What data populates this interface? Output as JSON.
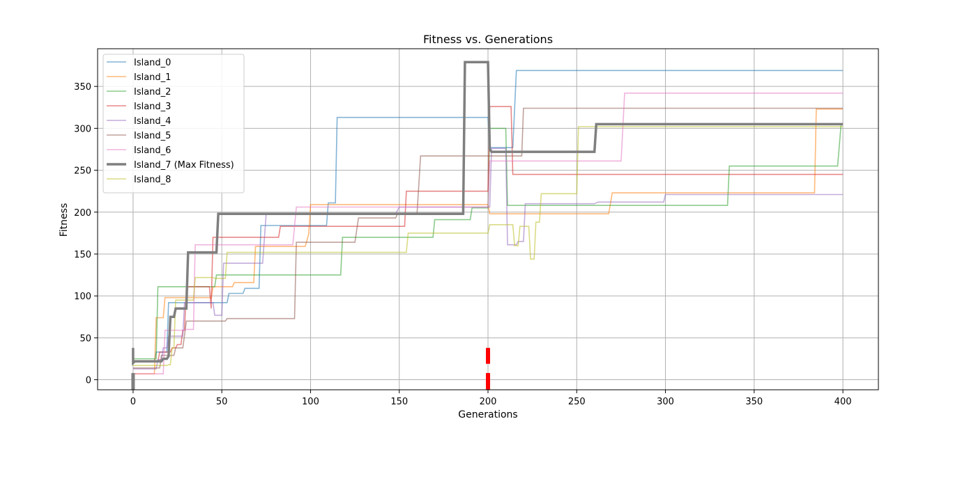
{
  "chart_data": {
    "type": "line",
    "title": "Fitness vs. Generations",
    "xlabel": "Generations",
    "ylabel": "Fitness",
    "xlim": [
      -20,
      420
    ],
    "ylim": [
      -12,
      395
    ],
    "xticks": [
      0,
      50,
      100,
      150,
      200,
      250,
      300,
      350,
      400
    ],
    "yticks": [
      0,
      50,
      100,
      150,
      200,
      250,
      300,
      350
    ],
    "grid": true,
    "legend_position": "upper-left",
    "series": [
      {
        "name": "Island_0",
        "color": "#1f77b4",
        "alpha": 0.55,
        "width": 1.6,
        "points": [
          [
            0,
            22
          ],
          [
            12,
            22
          ],
          [
            13,
            33
          ],
          [
            19,
            33
          ],
          [
            20,
            92
          ],
          [
            47,
            92
          ],
          [
            48,
            92
          ],
          [
            53,
            92
          ],
          [
            54,
            103
          ],
          [
            62,
            103
          ],
          [
            63,
            109
          ],
          [
            71,
            109
          ],
          [
            72,
            184
          ],
          [
            109,
            184
          ],
          [
            110,
            211
          ],
          [
            114,
            211
          ],
          [
            115,
            313
          ],
          [
            200,
            313
          ],
          [
            201,
            277
          ],
          [
            214,
            277
          ],
          [
            216,
            369
          ],
          [
            400,
            369
          ]
        ]
      },
      {
        "name": "Island_1",
        "color": "#ff7f0e",
        "alpha": 0.55,
        "width": 1.6,
        "points": [
          [
            0,
            7
          ],
          [
            12,
            7
          ],
          [
            13,
            74
          ],
          [
            17,
            74
          ],
          [
            18,
            98
          ],
          [
            34,
            98
          ],
          [
            35,
            98
          ],
          [
            44,
            98
          ],
          [
            45,
            111
          ],
          [
            56,
            111
          ],
          [
            57,
            116
          ],
          [
            68,
            116
          ],
          [
            69,
            159
          ],
          [
            97,
            159
          ],
          [
            99,
            174
          ],
          [
            100,
            209
          ],
          [
            200,
            209
          ],
          [
            201,
            198
          ],
          [
            268,
            198
          ],
          [
            270,
            223
          ],
          [
            384,
            223
          ],
          [
            385,
            323
          ],
          [
            400,
            323
          ]
        ]
      },
      {
        "name": "Island_2",
        "color": "#2ca02c",
        "alpha": 0.55,
        "width": 1.6,
        "points": [
          [
            0,
            25
          ],
          [
            13,
            25
          ],
          [
            14,
            111
          ],
          [
            28,
            111
          ],
          [
            29,
            111
          ],
          [
            46,
            111
          ],
          [
            47,
            125
          ],
          [
            117,
            125
          ],
          [
            118,
            170
          ],
          [
            169,
            170
          ],
          [
            170,
            191
          ],
          [
            190,
            191
          ],
          [
            191,
            205
          ],
          [
            200,
            205
          ],
          [
            201,
            300
          ],
          [
            210,
            300
          ],
          [
            211,
            208
          ],
          [
            335,
            208
          ],
          [
            336,
            255
          ],
          [
            397,
            255
          ],
          [
            399,
            305
          ],
          [
            400,
            305
          ]
        ]
      },
      {
        "name": "Island_3",
        "color": "#d62728",
        "alpha": 0.55,
        "width": 1.6,
        "points": [
          [
            0,
            22
          ],
          [
            14,
            22
          ],
          [
            15,
            33
          ],
          [
            21,
            33
          ],
          [
            22,
            38
          ],
          [
            24,
            38
          ],
          [
            25,
            42
          ],
          [
            27,
            42
          ],
          [
            28,
            59
          ],
          [
            29,
            59
          ],
          [
            30,
            111
          ],
          [
            43,
            111
          ],
          [
            44,
            85
          ],
          [
            45,
            170
          ],
          [
            82,
            170
          ],
          [
            83,
            183
          ],
          [
            153,
            183
          ],
          [
            154,
            225
          ],
          [
            200,
            225
          ],
          [
            201,
            326
          ],
          [
            213,
            326
          ],
          [
            214,
            245
          ],
          [
            400,
            245
          ]
        ]
      },
      {
        "name": "Island_4",
        "color": "#9467bd",
        "alpha": 0.55,
        "width": 1.6,
        "points": [
          [
            0,
            13
          ],
          [
            13,
            13
          ],
          [
            14,
            24
          ],
          [
            16,
            24
          ],
          [
            17,
            38
          ],
          [
            19,
            38
          ],
          [
            20,
            52
          ],
          [
            28,
            52
          ],
          [
            29,
            92
          ],
          [
            45,
            92
          ],
          [
            46,
            77
          ],
          [
            50,
            77
          ],
          [
            51,
            139
          ],
          [
            73,
            139
          ],
          [
            75,
            198
          ],
          [
            148,
            198
          ],
          [
            150,
            206
          ],
          [
            201,
            206
          ],
          [
            202,
            276
          ],
          [
            210,
            276
          ],
          [
            211,
            161
          ],
          [
            216,
            161
          ],
          [
            217,
            165
          ],
          [
            220,
            165
          ],
          [
            221,
            210
          ],
          [
            260,
            210
          ],
          [
            262,
            212
          ],
          [
            299,
            212
          ],
          [
            300,
            221
          ],
          [
            400,
            221
          ]
        ]
      },
      {
        "name": "Island_5",
        "color": "#8c564b",
        "alpha": 0.55,
        "width": 1.6,
        "points": [
          [
            0,
            14
          ],
          [
            15,
            14
          ],
          [
            16,
            29
          ],
          [
            23,
            29
          ],
          [
            24,
            38
          ],
          [
            28,
            38
          ],
          [
            29,
            53
          ],
          [
            30,
            70
          ],
          [
            52,
            70
          ],
          [
            53,
            73
          ],
          [
            91,
            73
          ],
          [
            92,
            164
          ],
          [
            114,
            164
          ],
          [
            115,
            164
          ],
          [
            125,
            164
          ],
          [
            127,
            193
          ],
          [
            148,
            193
          ],
          [
            149,
            198
          ],
          [
            160,
            198
          ],
          [
            162,
            267
          ],
          [
            200,
            267
          ],
          [
            201,
            267
          ],
          [
            219,
            267
          ],
          [
            220,
            324
          ],
          [
            400,
            324
          ]
        ]
      },
      {
        "name": "Island_6",
        "color": "#e377c2",
        "alpha": 0.55,
        "width": 1.6,
        "points": [
          [
            0,
            7
          ],
          [
            17,
            7
          ],
          [
            18,
            59
          ],
          [
            23,
            59
          ],
          [
            24,
            59
          ],
          [
            29,
            59
          ],
          [
            30,
            60
          ],
          [
            34,
            60
          ],
          [
            35,
            161
          ],
          [
            90,
            161
          ],
          [
            92,
            206
          ],
          [
            200,
            206
          ],
          [
            201,
            261
          ],
          [
            275,
            261
          ],
          [
            277,
            342
          ],
          [
            400,
            342
          ]
        ]
      },
      {
        "name": "Island_8",
        "color": "#bcbd22",
        "alpha": 0.55,
        "width": 1.6,
        "points": [
          [
            0,
            17
          ],
          [
            19,
            17
          ],
          [
            20,
            18
          ],
          [
            21,
            18
          ],
          [
            22,
            38
          ],
          [
            23,
            38
          ],
          [
            24,
            95
          ],
          [
            34,
            95
          ],
          [
            35,
            122
          ],
          [
            45,
            122
          ],
          [
            46,
            121
          ],
          [
            52,
            121
          ],
          [
            53,
            152
          ],
          [
            154,
            152
          ],
          [
            155,
            175
          ],
          [
            200,
            175
          ],
          [
            201,
            185
          ],
          [
            214,
            185
          ],
          [
            215,
            160
          ],
          [
            217,
            160
          ],
          [
            218,
            183
          ],
          [
            223,
            183
          ],
          [
            224,
            144
          ],
          [
            226,
            144
          ],
          [
            227,
            188
          ],
          [
            229,
            188
          ],
          [
            230,
            222
          ],
          [
            250,
            222
          ],
          [
            251,
            302
          ],
          [
            400,
            302
          ]
        ]
      },
      {
        "name": "Island_7 (Max Fitness)",
        "color": "#7f7f7f",
        "alpha": 1,
        "width": 3.5,
        "points": [
          [
            0,
            38
          ],
          [
            0,
            20
          ],
          [
            1,
            22
          ],
          [
            16,
            22
          ],
          [
            17,
            25
          ],
          [
            19,
            25
          ],
          [
            20,
            28
          ],
          [
            21,
            75
          ],
          [
            23,
            75
          ],
          [
            24,
            85
          ],
          [
            30,
            85
          ],
          [
            31,
            152
          ],
          [
            47,
            152
          ],
          [
            48,
            198
          ],
          [
            186,
            198
          ],
          [
            187,
            379
          ],
          [
            200,
            379
          ],
          [
            201,
            275
          ],
          [
            202,
            272
          ],
          [
            260,
            272
          ],
          [
            261,
            305
          ],
          [
            400,
            305
          ]
        ]
      }
    ],
    "extra_marks": [
      {
        "name": "Island_7 (Max Fitness)",
        "color": "#7f7f7f",
        "width": 5,
        "segments": [
          [
            [
              0,
              8
            ],
            [
              0,
              -12
            ]
          ]
        ]
      },
      {
        "name": "",
        "color": "#ff0000",
        "width": 6,
        "segments": [
          [
            [
              200,
              38
            ],
            [
              200,
              19
            ]
          ],
          [
            [
              200,
              8
            ],
            [
              200,
              -12
            ]
          ]
        ]
      }
    ],
    "legend_order": [
      "Island_0",
      "Island_1",
      "Island_2",
      "Island_3",
      "Island_4",
      "Island_5",
      "Island_6",
      "Island_7 (Max Fitness)",
      "Island_8"
    ]
  }
}
